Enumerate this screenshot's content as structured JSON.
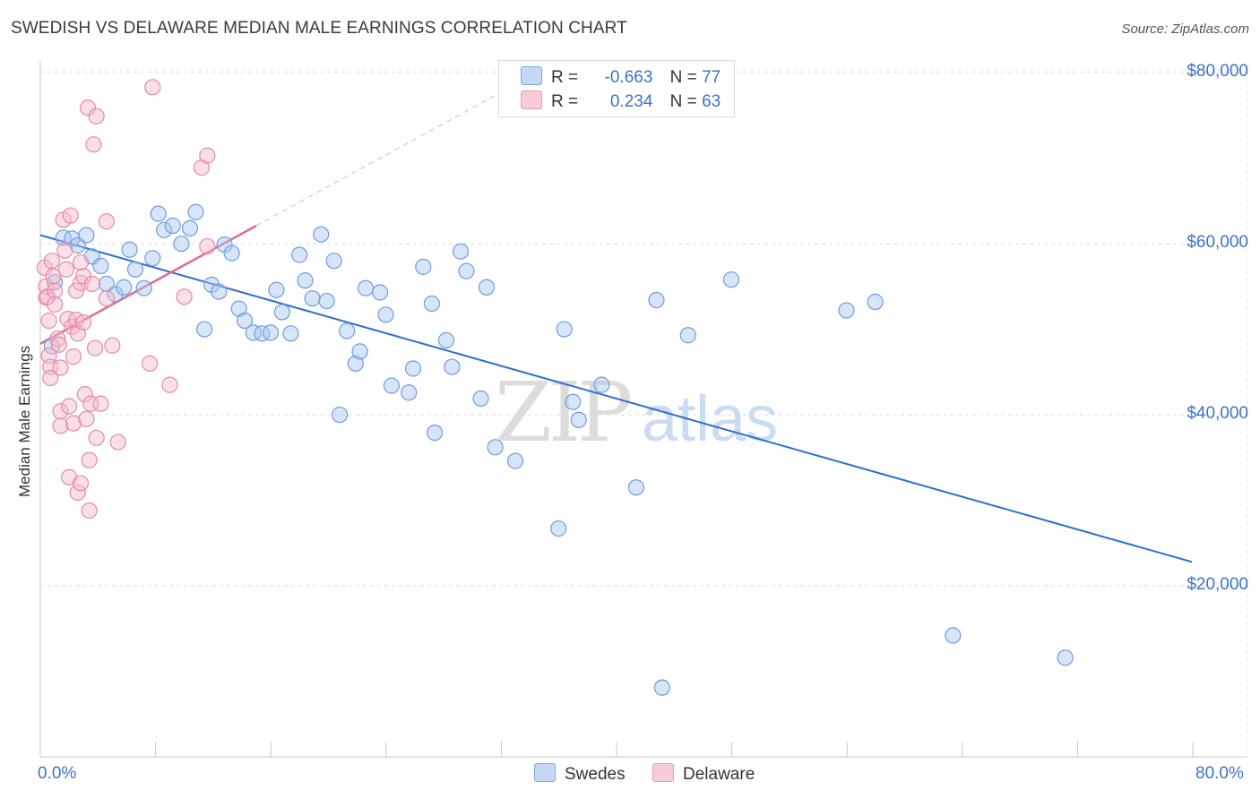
{
  "header": {
    "title": "SWEDISH VS DELAWARE MEDIAN MALE EARNINGS CORRELATION CHART",
    "source": "Source: ZipAtlas.com"
  },
  "legend": {
    "rows": [
      {
        "r_label": "R =",
        "r_value": "-0.663",
        "n_label": "N =",
        "n_value": "77",
        "color": "#a9c6f0"
      },
      {
        "r_label": "R =",
        "r_value": "0.234",
        "n_label": "N =",
        "n_value": "63",
        "color": "#f5b8cb"
      }
    ],
    "bottom": [
      {
        "label": "Swedes",
        "color": "#a9c6f0"
      },
      {
        "label": "Delaware",
        "color": "#f5b8cb"
      }
    ]
  },
  "watermark": {
    "zip": "ZIP",
    "atlas": "atlas"
  },
  "chart_data": {
    "type": "scatter",
    "title": "SWEDISH VS DELAWARE MEDIAN MALE EARNINGS CORRELATION CHART",
    "xlabel": "",
    "ylabel": "Median Male Earnings",
    "xlim": [
      0,
      80
    ],
    "ylim": [
      0,
      82000
    ],
    "x_tick_labels": {
      "min": "0.0%",
      "max": "80.0%"
    },
    "y_ticks": [
      {
        "value": 80000,
        "label": "$80,000"
      },
      {
        "value": 60000,
        "label": "$60,000"
      },
      {
        "value": 40000,
        "label": "$40,000"
      },
      {
        "value": 20000,
        "label": "$20,000"
      }
    ],
    "grid": true,
    "series": [
      {
        "name": "Swedes",
        "color": "#a9c6f0",
        "stroke": "#6d9de0",
        "trend": {
          "x0": 0.0,
          "y0": 61000,
          "x1": 80.0,
          "y1": 22800,
          "color": "#2f6fce"
        },
        "points": [
          [
            0.8,
            48000
          ],
          [
            1.0,
            55500
          ],
          [
            1.6,
            60700
          ],
          [
            2.2,
            60600
          ],
          [
            2.6,
            59800
          ],
          [
            3.2,
            61000
          ],
          [
            3.6,
            58500
          ],
          [
            4.2,
            57400
          ],
          [
            4.6,
            55300
          ],
          [
            5.2,
            54100
          ],
          [
            5.8,
            54900
          ],
          [
            6.2,
            59300
          ],
          [
            6.6,
            57000
          ],
          [
            7.2,
            54800
          ],
          [
            7.8,
            58300
          ],
          [
            8.2,
            63500
          ],
          [
            8.6,
            61600
          ],
          [
            9.2,
            62100
          ],
          [
            9.8,
            60000
          ],
          [
            10.4,
            61800
          ],
          [
            10.8,
            63700
          ],
          [
            11.4,
            50000
          ],
          [
            11.9,
            55200
          ],
          [
            12.4,
            54400
          ],
          [
            12.8,
            59900
          ],
          [
            13.3,
            58900
          ],
          [
            13.8,
            52400
          ],
          [
            14.2,
            51000
          ],
          [
            14.8,
            49600
          ],
          [
            15.4,
            49500
          ],
          [
            16.0,
            49600
          ],
          [
            16.4,
            54600
          ],
          [
            16.8,
            52000
          ],
          [
            17.4,
            49500
          ],
          [
            18.0,
            58700
          ],
          [
            18.4,
            55700
          ],
          [
            18.9,
            53600
          ],
          [
            19.5,
            61100
          ],
          [
            19.9,
            53300
          ],
          [
            20.4,
            58000
          ],
          [
            20.8,
            40000
          ],
          [
            21.3,
            49800
          ],
          [
            21.9,
            46000
          ],
          [
            22.2,
            47400
          ],
          [
            22.6,
            54800
          ],
          [
            23.6,
            54300
          ],
          [
            24.0,
            51700
          ],
          [
            24.4,
            43400
          ],
          [
            25.6,
            42600
          ],
          [
            25.9,
            45400
          ],
          [
            26.6,
            57300
          ],
          [
            27.2,
            53000
          ],
          [
            27.4,
            37900
          ],
          [
            28.2,
            48700
          ],
          [
            28.6,
            45600
          ],
          [
            29.2,
            59100
          ],
          [
            29.6,
            56800
          ],
          [
            30.6,
            41900
          ],
          [
            31.0,
            54900
          ],
          [
            31.6,
            36200
          ],
          [
            33.0,
            34600
          ],
          [
            36.0,
            26700
          ],
          [
            36.4,
            50000
          ],
          [
            37.0,
            41500
          ],
          [
            37.4,
            39400
          ],
          [
            39.0,
            43500
          ],
          [
            41.4,
            31500
          ],
          [
            42.8,
            53400
          ],
          [
            43.2,
            8100
          ],
          [
            45.0,
            49300
          ],
          [
            48.0,
            55800
          ],
          [
            56.0,
            52200
          ],
          [
            58.0,
            53200
          ],
          [
            63.4,
            14200
          ],
          [
            71.2,
            11600
          ]
        ]
      },
      {
        "name": "Delaware",
        "color": "#f5b8cb",
        "stroke": "#e58aa6",
        "trend": {
          "x0": 0.0,
          "y0": 48300,
          "x1": 15.0,
          "y1": 62100,
          "x_dash_end": 32.0,
          "y_dash_end": 77700,
          "color": "#e06a90"
        },
        "points": [
          [
            0.3,
            57200
          ],
          [
            0.4,
            55000
          ],
          [
            0.4,
            53700
          ],
          [
            0.5,
            53800
          ],
          [
            0.6,
            51000
          ],
          [
            0.6,
            46900
          ],
          [
            0.7,
            45600
          ],
          [
            0.7,
            44300
          ],
          [
            0.8,
            58000
          ],
          [
            0.9,
            56200
          ],
          [
            1.0,
            54500
          ],
          [
            1.0,
            52900
          ],
          [
            1.2,
            48900
          ],
          [
            1.3,
            48200
          ],
          [
            1.4,
            45500
          ],
          [
            1.4,
            40400
          ],
          [
            1.4,
            38700
          ],
          [
            1.6,
            62800
          ],
          [
            1.7,
            59200
          ],
          [
            1.8,
            57000
          ],
          [
            1.9,
            51200
          ],
          [
            2.0,
            41000
          ],
          [
            2.0,
            32700
          ],
          [
            2.1,
            63300
          ],
          [
            2.2,
            50300
          ],
          [
            2.3,
            46800
          ],
          [
            2.3,
            39000
          ],
          [
            2.5,
            54500
          ],
          [
            2.5,
            51100
          ],
          [
            2.6,
            49500
          ],
          [
            2.6,
            30900
          ],
          [
            2.8,
            57800
          ],
          [
            2.8,
            55400
          ],
          [
            2.8,
            32000
          ],
          [
            3.0,
            56200
          ],
          [
            3.0,
            50800
          ],
          [
            3.1,
            42400
          ],
          [
            3.2,
            39500
          ],
          [
            3.3,
            75900
          ],
          [
            3.4,
            34700
          ],
          [
            3.4,
            28800
          ],
          [
            3.5,
            41300
          ],
          [
            3.6,
            55300
          ],
          [
            3.7,
            71600
          ],
          [
            3.8,
            47800
          ],
          [
            3.9,
            37300
          ],
          [
            3.9,
            74900
          ],
          [
            4.2,
            41300
          ],
          [
            4.6,
            53600
          ],
          [
            4.6,
            62600
          ],
          [
            5.0,
            48100
          ],
          [
            5.4,
            36800
          ],
          [
            7.6,
            46000
          ],
          [
            7.8,
            78300
          ],
          [
            9.0,
            43500
          ],
          [
            10.0,
            53800
          ],
          [
            11.2,
            68900
          ],
          [
            11.6,
            70300
          ],
          [
            11.6,
            59700
          ]
        ]
      }
    ]
  }
}
